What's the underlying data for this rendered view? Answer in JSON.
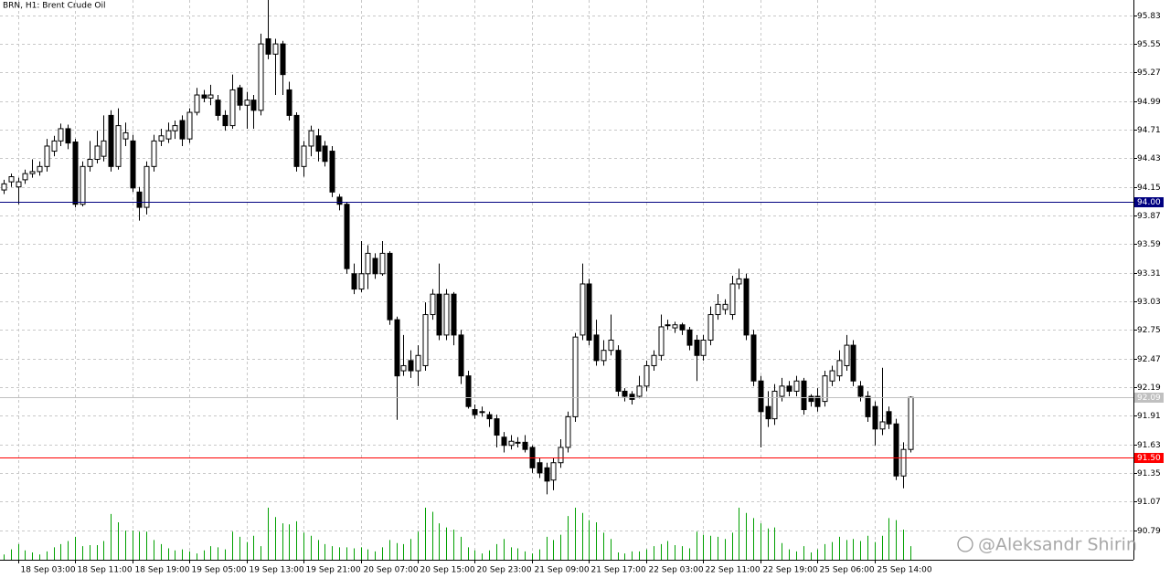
{
  "chart_data": {
    "type": "candlestick",
    "title": "BRN, H1:  Brent Crude Oil",
    "watermark": "@Aleksandr Shirin",
    "categories": [
      null,
      null,
      "18 Sep 03:00",
      null,
      null,
      null,
      null,
      null,
      null,
      null,
      "18 Sep 11:00",
      null,
      null,
      null,
      null,
      null,
      null,
      null,
      "18 Sep 19:00",
      null,
      null,
      null,
      null,
      null,
      null,
      null,
      "19 Sep 05:00",
      null,
      null,
      null,
      null,
      null,
      null,
      null,
      "19 Sep 13:00",
      null,
      null,
      null,
      null,
      null,
      null,
      null,
      "19 Sep 21:00",
      null,
      null,
      null,
      null,
      null,
      null,
      null,
      "20 Sep 07:00",
      null,
      null,
      null,
      null,
      null,
      null,
      null,
      "20 Sep 15:00",
      null,
      null,
      null,
      null,
      null,
      null,
      null,
      "20 Sep 23:00",
      null,
      null,
      null,
      null,
      null,
      null,
      null,
      "21 Sep 09:00",
      null,
      null,
      null,
      null,
      null,
      null,
      null,
      "21 Sep 17:00",
      null,
      null,
      null,
      null,
      null,
      null,
      null,
      "22 Sep 03:00",
      null,
      null,
      null,
      null,
      null,
      null,
      null,
      "22 Sep 11:00",
      null,
      null,
      null,
      null,
      null,
      null,
      null,
      "22 Sep 19:00",
      null,
      null,
      null,
      null,
      null,
      null,
      null,
      "25 Sep 06:00",
      null,
      null,
      null,
      null,
      null,
      null,
      null,
      "25 Sep 14:00",
      null,
      null,
      null,
      null,
      null
    ],
    "open": [
      94.12,
      94.2,
      94.15,
      94.22,
      94.28,
      94.3,
      94.35,
      94.5,
      94.6,
      94.72,
      94.59,
      93.98,
      94.35,
      94.42,
      94.45,
      94.85,
      94.35,
      94.62,
      94.6,
      94.1,
      93.95,
      94.35,
      94.6,
      94.62,
      94.7,
      94.8,
      94.62,
      94.88,
      95.05,
      95.02,
      95.0,
      94.85,
      94.75,
      95.12,
      94.95,
      95.0,
      94.9,
      95.6,
      95.45,
      95.55,
      95.1,
      94.85,
      94.35,
      94.55,
      94.65,
      94.55,
      94.5,
      94.05,
      93.98,
      93.3,
      93.15,
      93.3,
      93.45,
      93.3,
      93.5,
      92.85,
      92.35,
      92.45,
      92.35,
      92.4,
      92.9,
      93.1,
      92.7,
      93.1,
      92.7,
      92.3,
      91.97,
      91.95,
      91.92,
      91.88,
      91.7,
      91.62,
      91.65,
      91.65,
      91.6,
      91.45,
      91.4,
      91.28,
      91.45,
      91.6,
      91.9,
      92.7,
      93.2,
      92.7,
      92.45,
      92.55,
      92.55,
      92.15,
      92.12,
      92.1,
      92.2,
      92.4,
      92.5,
      92.8,
      92.77,
      92.8,
      92.75,
      92.65,
      92.5,
      92.65,
      92.9,
      92.95,
      92.9,
      93.2,
      93.25,
      92.7,
      92.25,
      92.0,
      91.88,
      92.1,
      92.2,
      92.15,
      92.25,
      92.1,
      92.1,
      92.05,
      92.25,
      92.3,
      92.4,
      92.6,
      92.2,
      92.1,
      92.0,
      91.78,
      91.95,
      91.83,
      91.32,
      91.58
    ],
    "high": [
      94.22,
      94.28,
      94.24,
      94.32,
      94.42,
      94.4,
      94.62,
      94.65,
      94.77,
      94.76,
      94.62,
      94.4,
      94.6,
      94.7,
      94.85,
      94.9,
      94.92,
      94.78,
      94.66,
      94.15,
      94.4,
      94.66,
      94.72,
      94.78,
      94.8,
      94.85,
      94.92,
      95.12,
      95.1,
      95.15,
      95.05,
      94.9,
      95.25,
      95.15,
      95.08,
      95.05,
      95.65,
      95.98,
      95.6,
      95.58,
      95.18,
      94.88,
      94.6,
      94.75,
      94.72,
      94.6,
      94.55,
      94.08,
      94.0,
      93.4,
      93.62,
      93.58,
      93.5,
      93.62,
      93.52,
      92.88,
      92.7,
      92.55,
      92.6,
      93.02,
      93.15,
      93.4,
      93.15,
      93.12,
      92.75,
      92.35,
      92.02,
      92.0,
      91.95,
      91.92,
      91.75,
      91.72,
      91.7,
      91.72,
      91.62,
      91.5,
      91.45,
      91.5,
      91.68,
      91.95,
      92.72,
      93.4,
      93.25,
      92.85,
      92.65,
      92.9,
      92.6,
      92.18,
      92.15,
      92.3,
      92.45,
      92.55,
      92.9,
      92.85,
      92.83,
      92.82,
      92.78,
      92.7,
      92.7,
      92.98,
      93.1,
      93.05,
      93.28,
      93.35,
      93.3,
      92.75,
      92.3,
      92.15,
      92.22,
      92.28,
      92.25,
      92.3,
      92.28,
      92.12,
      92.18,
      92.35,
      92.4,
      92.55,
      92.7,
      92.65,
      92.25,
      92.15,
      92.05,
      92.38,
      92.0,
      91.88,
      91.65,
      92.1
    ],
    "low": [
      94.08,
      94.15,
      93.98,
      94.18,
      94.24,
      94.26,
      94.3,
      94.45,
      94.55,
      94.52,
      93.95,
      93.96,
      94.3,
      94.38,
      94.4,
      94.3,
      94.32,
      94.55,
      94.1,
      93.82,
      93.88,
      94.3,
      94.55,
      94.58,
      94.62,
      94.55,
      94.58,
      94.85,
      94.98,
      94.95,
      94.8,
      94.7,
      94.72,
      94.9,
      94.72,
      94.72,
      94.85,
      95.4,
      95.05,
      95.05,
      94.8,
      94.3,
      94.25,
      94.45,
      94.4,
      94.35,
      94.05,
      93.92,
      93.3,
      93.1,
      93.12,
      93.15,
      93.25,
      93.28,
      92.8,
      91.87,
      92.3,
      92.28,
      92.2,
      92.35,
      92.85,
      92.65,
      92.65,
      92.6,
      92.22,
      91.98,
      91.88,
      91.9,
      91.8,
      91.6,
      91.55,
      91.58,
      91.6,
      91.55,
      91.35,
      91.3,
      91.14,
      91.18,
      91.4,
      91.55,
      91.85,
      92.65,
      92.6,
      92.4,
      92.4,
      92.5,
      92.1,
      92.05,
      92.02,
      92.08,
      92.15,
      92.35,
      92.45,
      92.75,
      92.72,
      92.7,
      92.55,
      92.25,
      92.45,
      92.6,
      92.85,
      92.9,
      92.85,
      93.15,
      92.65,
      92.2,
      91.6,
      91.8,
      91.82,
      92.05,
      92.1,
      92.1,
      91.92,
      92.0,
      91.95,
      92.0,
      92.2,
      92.25,
      92.35,
      92.2,
      92.05,
      91.85,
      91.62,
      91.72,
      91.78,
      91.28,
      91.2,
      91.55
    ],
    "close": [
      94.18,
      94.25,
      94.2,
      94.28,
      94.3,
      94.35,
      94.55,
      94.6,
      94.72,
      94.58,
      93.98,
      94.35,
      94.42,
      94.55,
      94.6,
      94.35,
      94.75,
      94.68,
      94.14,
      93.95,
      94.35,
      94.6,
      94.65,
      94.7,
      94.75,
      94.62,
      94.88,
      95.05,
      95.02,
      95.05,
      94.85,
      94.75,
      95.1,
      94.95,
      95.0,
      94.9,
      95.55,
      95.45,
      95.55,
      95.25,
      94.85,
      94.35,
      94.55,
      94.7,
      94.5,
      94.4,
      94.1,
      93.98,
      93.35,
      93.15,
      93.3,
      93.5,
      93.3,
      93.5,
      92.85,
      92.3,
      92.4,
      92.35,
      92.5,
      92.9,
      93.1,
      92.7,
      93.1,
      92.7,
      92.3,
      92.0,
      91.92,
      91.95,
      91.88,
      91.72,
      91.62,
      91.66,
      91.65,
      91.58,
      91.4,
      91.35,
      91.27,
      91.45,
      91.6,
      91.9,
      92.68,
      93.2,
      92.65,
      92.45,
      92.55,
      92.65,
      92.15,
      92.1,
      92.07,
      92.2,
      92.4,
      92.5,
      92.78,
      92.8,
      92.8,
      92.75,
      92.6,
      92.5,
      92.65,
      92.9,
      93.0,
      93.0,
      93.2,
      93.25,
      92.7,
      92.25,
      91.95,
      91.88,
      92.15,
      92.2,
      92.15,
      92.25,
      91.97,
      92.05,
      92.0,
      92.3,
      92.35,
      92.45,
      92.6,
      92.25,
      92.1,
      91.9,
      91.78,
      91.85,
      91.83,
      91.32,
      91.58,
      92.09
    ],
    "volume": [
      100,
      200,
      300,
      180,
      140,
      100,
      160,
      240,
      300,
      360,
      440,
      260,
      280,
      280,
      360,
      880,
      720,
      560,
      560,
      540,
      540,
      380,
      300,
      220,
      180,
      200,
      160,
      120,
      180,
      260,
      240,
      200,
      540,
      440,
      340,
      460,
      260,
      1000,
      820,
      700,
      680,
      740,
      520,
      460,
      380,
      300,
      260,
      240,
      240,
      220,
      240,
      200,
      160,
      240,
      380,
      320,
      300,
      400,
      540,
      1000,
      920,
      700,
      620,
      580,
      440,
      240,
      180,
      120,
      180,
      300,
      400,
      240,
      220,
      160,
      120,
      200,
      440,
      380,
      480,
      840,
      1000,
      900,
      760,
      720,
      520,
      400,
      140,
      120,
      160,
      160,
      200,
      260,
      300,
      360,
      280,
      260,
      220,
      540,
      480,
      460,
      440,
      400,
      520,
      1000,
      900,
      800,
      700,
      600,
      620,
      320,
      200,
      160,
      260,
      140,
      200,
      300,
      340,
      440,
      380,
      400,
      360,
      460,
      340,
      460,
      800,
      760,
      580,
      260
    ],
    "volume_color": "#00a000",
    "bull_color": "#ffffff",
    "bear_color": "#000000",
    "ylim": [
      90.5,
      95.98
    ],
    "yticks": [
      95.83,
      95.55,
      95.27,
      94.99,
      94.71,
      94.43,
      94.15,
      93.87,
      93.59,
      93.31,
      93.03,
      92.75,
      92.47,
      92.19,
      91.91,
      91.63,
      91.35,
      91.07,
      90.79
    ],
    "grid": true,
    "levels": [
      {
        "value": 94.0,
        "label": "94.00",
        "color": "#000080"
      },
      {
        "value": 92.09,
        "label": "92.09",
        "color": "#c0c0c0"
      },
      {
        "value": 91.5,
        "label": "91.50",
        "color": "#ff0000"
      }
    ]
  }
}
